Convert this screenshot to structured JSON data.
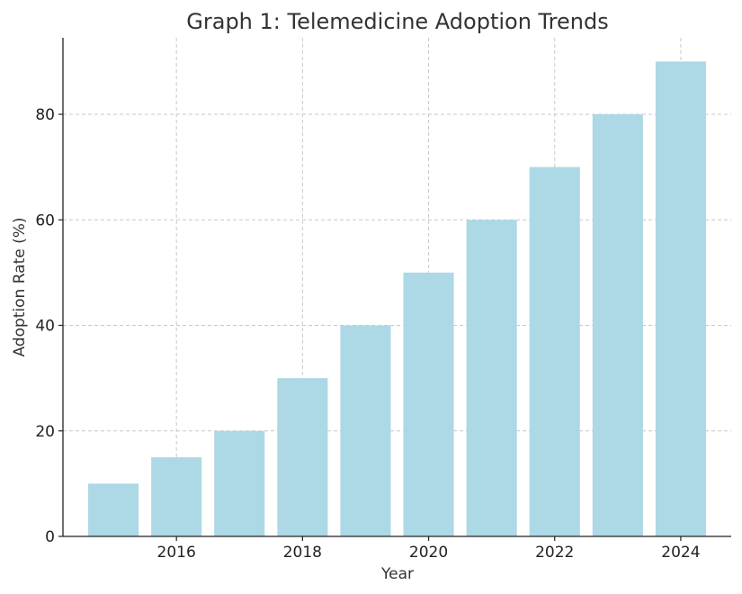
{
  "chart_data": {
    "type": "bar",
    "title": "Graph 1: Telemedicine Adoption Trends",
    "xlabel": "Year",
    "ylabel": "Adoption Rate (%)",
    "categories": [
      2015,
      2016,
      2017,
      2018,
      2019,
      2020,
      2021,
      2022,
      2023,
      2024
    ],
    "values": [
      10,
      15,
      20,
      30,
      40,
      50,
      60,
      70,
      80,
      90
    ],
    "xlim": [
      2014.2,
      2024.8
    ],
    "ylim": [
      0,
      94.5
    ],
    "xticks": [
      2016,
      2018,
      2020,
      2022,
      2024
    ],
    "yticks": [
      0,
      20,
      40,
      60,
      80
    ],
    "grid": true,
    "bar_color": "#add8e6"
  }
}
